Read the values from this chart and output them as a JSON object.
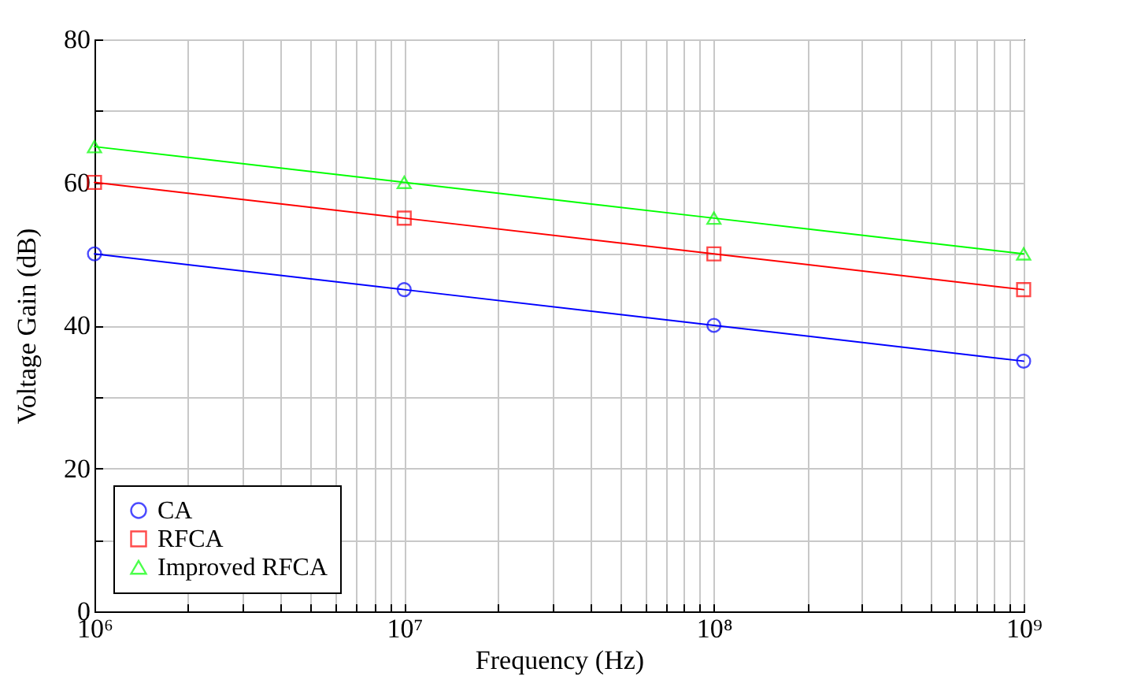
{
  "chart_data": {
    "type": "line",
    "xlabel": "Frequency (Hz)",
    "ylabel": "Voltage Gain (dB)",
    "log": "x",
    "x": [
      1000000,
      10000000,
      100000000,
      1000000000
    ],
    "xlim": [
      1000000,
      1000000000
    ],
    "xticks": [
      {
        "value": 1000000,
        "label": "10⁶"
      },
      {
        "value": 2000000,
        "label": null
      },
      {
        "value": 3000000,
        "label": null
      },
      {
        "value": 4000000,
        "label": null
      },
      {
        "value": 5000000,
        "label": null
      },
      {
        "value": 6000000,
        "label": null
      },
      {
        "value": 7000000,
        "label": null
      },
      {
        "value": 8000000,
        "label": null
      },
      {
        "value": 9000000,
        "label": null
      },
      {
        "value": 10000000,
        "label": "10⁷"
      },
      {
        "value": 20000000,
        "label": null
      },
      {
        "value": 30000000,
        "label": null
      },
      {
        "value": 40000000,
        "label": null
      },
      {
        "value": 50000000,
        "label": null
      },
      {
        "value": 60000000,
        "label": null
      },
      {
        "value": 70000000,
        "label": null
      },
      {
        "value": 80000000,
        "label": null
      },
      {
        "value": 90000000,
        "label": null
      },
      {
        "value": 100000000,
        "label": "10⁸"
      },
      {
        "value": 200000000,
        "label": null
      },
      {
        "value": 300000000,
        "label": null
      },
      {
        "value": 400000000,
        "label": null
      },
      {
        "value": 500000000,
        "label": null
      },
      {
        "value": 600000000,
        "label": null
      },
      {
        "value": 700000000,
        "label": null
      },
      {
        "value": 800000000,
        "label": null
      },
      {
        "value": 900000000,
        "label": null
      },
      {
        "value": 1000000000,
        "label": "10⁹"
      }
    ],
    "ylim": [
      0,
      80
    ],
    "yticks": [
      0,
      {
        "value": 10,
        "label": null
      },
      20,
      {
        "value": 30,
        "label": null
      },
      40,
      {
        "value": 50,
        "label": null
      },
      60,
      {
        "value": 70,
        "label": null
      },
      80
    ],
    "grid": true,
    "legend": "bottom left",
    "line_style": "solid",
    "series": [
      {
        "name": "CA",
        "color": "#0000ff",
        "marker": "circle",
        "values": [
          50,
          45,
          40,
          35
        ]
      },
      {
        "name": "RFCA",
        "color": "#ff0000",
        "marker": "square",
        "values": [
          60,
          55,
          50,
          45
        ]
      },
      {
        "name": "Improved RFCA",
        "color": "#00ff00",
        "marker": "triangle",
        "values": [
          65,
          60,
          55,
          50
        ]
      }
    ]
  }
}
